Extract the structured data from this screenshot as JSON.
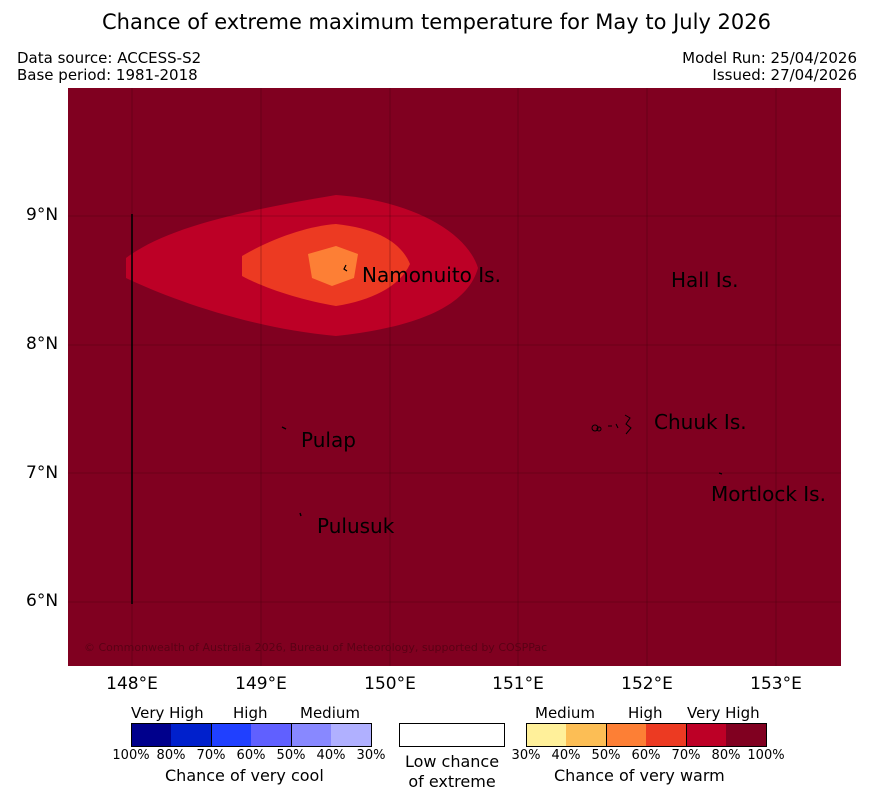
{
  "title": "Chance of extreme maximum temperature for May to July 2026",
  "meta": {
    "data_source": "Data source: ACCESS-S2",
    "base_period": "Base period: 1981-2018",
    "model_run": "Model Run: 25/04/2026",
    "issued": "Issued: 27/04/2026"
  },
  "axes": {
    "latitudes": [
      "9°N",
      "8°N",
      "7°N",
      "6°N"
    ],
    "longitudes": [
      "148°E",
      "149°E",
      "150°E",
      "151°E",
      "152°E",
      "153°E"
    ]
  },
  "places": {
    "namonuito": "Namonuito Is.",
    "hall": "Hall Is.",
    "pulap": "Pulap",
    "chuuk": "Chuuk Is.",
    "mortlock": "Mortlock Is.",
    "pulusuk": "Pulusuk"
  },
  "copyright": "© Commonwealth of Australia 2026, Bureau of Meteorology, supported by COSPPac",
  "legend": {
    "cool": {
      "categories": [
        "Very High",
        "High",
        "Medium"
      ],
      "ticks": [
        "100%",
        "80%",
        "70%",
        "60%",
        "50%",
        "40%",
        "30%"
      ],
      "caption": "Chance of very cool",
      "colors": [
        "#00008c",
        "#0020cc",
        "#2040ff",
        "#6060ff",
        "#8888ff",
        "#b0b0ff"
      ]
    },
    "low": {
      "caption_line1": "Low chance",
      "caption_line2": "of extreme"
    },
    "warm": {
      "categories": [
        "Medium",
        "High",
        "Very High"
      ],
      "ticks": [
        "30%",
        "40%",
        "50%",
        "60%",
        "70%",
        "80%",
        "100%"
      ],
      "caption": "Chance of very warm",
      "colors": [
        "#fff09a",
        "#fcbe55",
        "#fd7f35",
        "#ec3a22",
        "#bd0026",
        "#800020"
      ]
    }
  },
  "map_colors": {
    "very_high": "#800020",
    "high_80": "#bd0026",
    "band_70": "#ec3a22",
    "band_60": "#fd7f35"
  }
}
